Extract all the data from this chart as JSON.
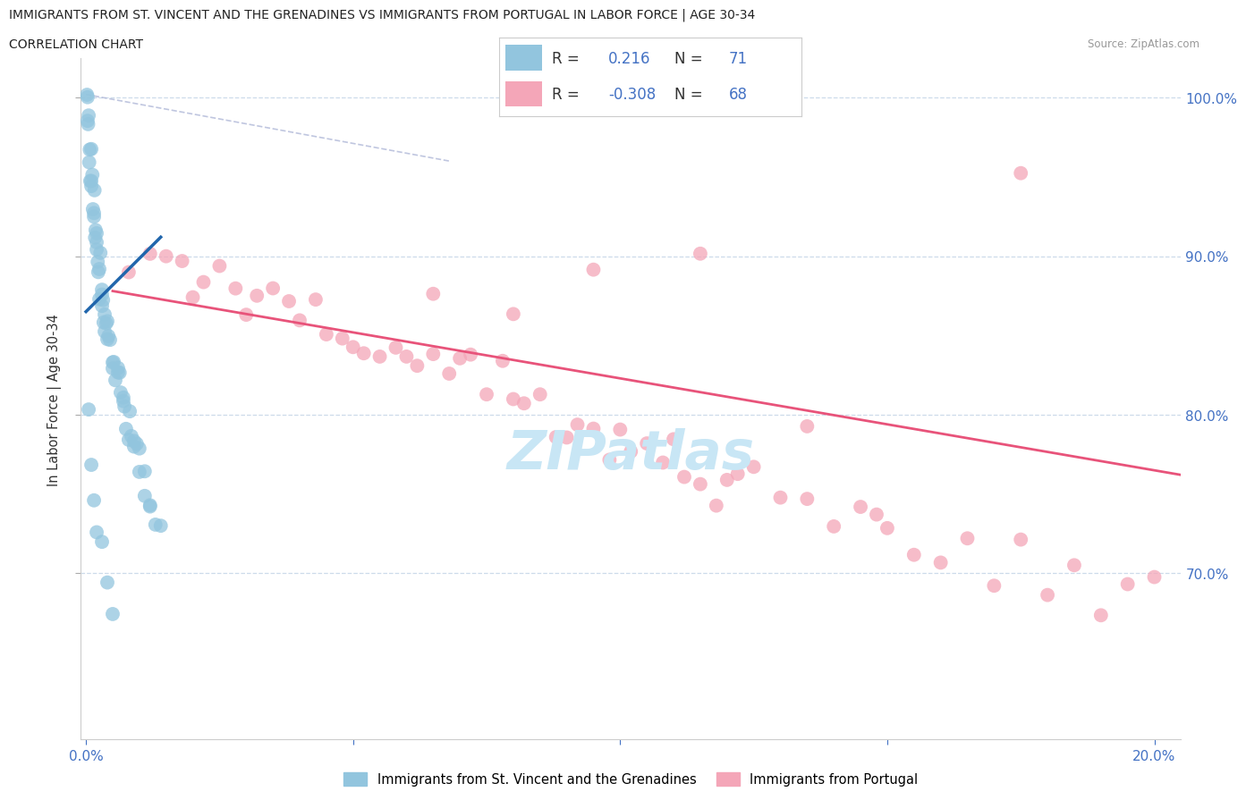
{
  "title_line1": "IMMIGRANTS FROM ST. VINCENT AND THE GRENADINES VS IMMIGRANTS FROM PORTUGAL IN LABOR FORCE | AGE 30-34",
  "title_line2": "CORRELATION CHART",
  "source_text": "Source: ZipAtlas.com",
  "ylabel": "In Labor Force | Age 30-34",
  "color_blue": "#92c5de",
  "color_pink": "#f4a6b8",
  "trend_blue": "#2166ac",
  "trend_pink": "#e8537a",
  "dashed_color": "#aaaacc",
  "watermark_color": "#c8e6f5",
  "legend_R1": "0.216",
  "legend_N1": "71",
  "legend_R2": "-0.308",
  "legend_N2": "68",
  "blue_label": "Immigrants from St. Vincent and the Grenadines",
  "pink_label": "Immigrants from Portugal",
  "x_min": -0.001,
  "x_max": 0.205,
  "y_min": 0.595,
  "y_max": 1.025,
  "x_ticks": [
    0.0,
    0.05,
    0.1,
    0.15,
    0.2
  ],
  "x_tick_labels": [
    "0.0%",
    "",
    "",
    "",
    "20.0%"
  ],
  "y_ticks": [
    0.7,
    0.8,
    0.9,
    1.0
  ],
  "y_tick_labels": [
    "70.0%",
    "80.0%",
    "90.0%",
    "100.0%"
  ],
  "blue_x": [
    0.0002,
    0.0003,
    0.0003,
    0.0004,
    0.0005,
    0.0006,
    0.0007,
    0.0008,
    0.001,
    0.001,
    0.001,
    0.0012,
    0.0013,
    0.0015,
    0.0015,
    0.0016,
    0.0017,
    0.0018,
    0.002,
    0.002,
    0.002,
    0.0022,
    0.0023,
    0.0025,
    0.0025,
    0.0027,
    0.003,
    0.003,
    0.003,
    0.0032,
    0.0033,
    0.0035,
    0.0035,
    0.0038,
    0.004,
    0.004,
    0.0042,
    0.0045,
    0.005,
    0.005,
    0.0052,
    0.0055,
    0.006,
    0.006,
    0.0063,
    0.0065,
    0.007,
    0.007,
    0.0072,
    0.0075,
    0.008,
    0.0082,
    0.0085,
    0.009,
    0.009,
    0.0095,
    0.01,
    0.01,
    0.011,
    0.011,
    0.012,
    0.012,
    0.013,
    0.014,
    0.0005,
    0.001,
    0.0015,
    0.002,
    0.003,
    0.004,
    0.005
  ],
  "blue_y": [
    1.0,
    0.995,
    0.99,
    0.98,
    0.985,
    0.975,
    0.965,
    0.96,
    0.955,
    0.95,
    0.945,
    0.942,
    0.938,
    0.935,
    0.93,
    0.928,
    0.922,
    0.918,
    0.915,
    0.91,
    0.905,
    0.902,
    0.898,
    0.895,
    0.89,
    0.888,
    0.885,
    0.88,
    0.875,
    0.87,
    0.868,
    0.865,
    0.86,
    0.858,
    0.855,
    0.85,
    0.848,
    0.845,
    0.84,
    0.838,
    0.835,
    0.83,
    0.828,
    0.825,
    0.82,
    0.815,
    0.812,
    0.808,
    0.805,
    0.8,
    0.798,
    0.795,
    0.79,
    0.785,
    0.78,
    0.775,
    0.77,
    0.765,
    0.76,
    0.755,
    0.75,
    0.742,
    0.735,
    0.725,
    0.78,
    0.755,
    0.742,
    0.728,
    0.715,
    0.695,
    0.675
  ],
  "pink_x": [
    0.008,
    0.012,
    0.015,
    0.018,
    0.02,
    0.022,
    0.025,
    0.028,
    0.03,
    0.032,
    0.035,
    0.038,
    0.04,
    0.043,
    0.045,
    0.048,
    0.05,
    0.052,
    0.055,
    0.058,
    0.06,
    0.062,
    0.065,
    0.068,
    0.07,
    0.072,
    0.075,
    0.078,
    0.08,
    0.082,
    0.085,
    0.088,
    0.09,
    0.092,
    0.095,
    0.098,
    0.1,
    0.102,
    0.105,
    0.108,
    0.11,
    0.112,
    0.115,
    0.118,
    0.12,
    0.122,
    0.125,
    0.13,
    0.135,
    0.14,
    0.145,
    0.148,
    0.15,
    0.155,
    0.16,
    0.165,
    0.17,
    0.175,
    0.18,
    0.185,
    0.19,
    0.195,
    0.2,
    0.115,
    0.065,
    0.08,
    0.095,
    0.135
  ],
  "pink_y": [
    0.875,
    0.905,
    0.888,
    0.895,
    0.875,
    0.885,
    0.892,
    0.878,
    0.872,
    0.869,
    0.865,
    0.862,
    0.858,
    0.862,
    0.858,
    0.855,
    0.852,
    0.848,
    0.845,
    0.842,
    0.838,
    0.835,
    0.832,
    0.828,
    0.825,
    0.822,
    0.818,
    0.815,
    0.812,
    0.808,
    0.805,
    0.802,
    0.798,
    0.795,
    0.792,
    0.789,
    0.785,
    0.782,
    0.779,
    0.775,
    0.772,
    0.769,
    0.765,
    0.762,
    0.759,
    0.755,
    0.752,
    0.748,
    0.742,
    0.738,
    0.735,
    0.73,
    0.726,
    0.722,
    0.718,
    0.714,
    0.71,
    0.706,
    0.702,
    0.698,
    0.694,
    0.69,
    0.686,
    0.892,
    0.858,
    0.845,
    0.895,
    0.808
  ],
  "pink_outlier_x": [
    0.175
  ],
  "pink_outlier_y": [
    0.955
  ]
}
